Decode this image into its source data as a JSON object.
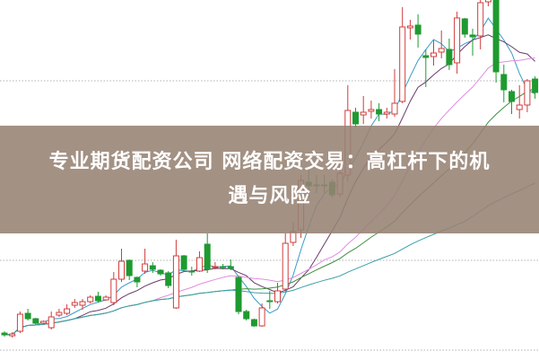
{
  "banner": {
    "line1": "专业期货配资公司 网络配资交易：高杠杆下的机",
    "line2": "遇与风险"
  },
  "chart_data": {
    "type": "candlestick",
    "title": "",
    "xlabel": "",
    "ylabel": "",
    "grid": "horizontal dotted",
    "legend": "none",
    "colors": {
      "up": "#d03c3c",
      "down": "#1e9a30",
      "ma5": "#3a9cc8",
      "ma10": "#6b3a6b",
      "ma20": "#e08ee0",
      "ma30": "#3f8f3f",
      "ma60": "#3aa0a8",
      "grid": "#b0b0b0"
    },
    "moving_averages": [
      5,
      10,
      20,
      30,
      60
    ],
    "ylim": [
      0,
      400
    ],
    "ohlc": [
      [
        29,
        27,
        31,
        25
      ],
      [
        26,
        28,
        30,
        24
      ],
      [
        31,
        50,
        53,
        29
      ],
      [
        51,
        45,
        56,
        43
      ],
      [
        45,
        40,
        46,
        38
      ],
      [
        40,
        42,
        43,
        39
      ],
      [
        35,
        47,
        53,
        33
      ],
      [
        49,
        52,
        56,
        47
      ],
      [
        51,
        56,
        61,
        49
      ],
      [
        60,
        63,
        67,
        57
      ],
      [
        60,
        64,
        67,
        55
      ],
      [
        64,
        69,
        71,
        62
      ],
      [
        70,
        65,
        75,
        63
      ],
      [
        66,
        69,
        71,
        65
      ],
      [
        63,
        89,
        97,
        60
      ],
      [
        89,
        109,
        123,
        86
      ],
      [
        110,
        93,
        111,
        88
      ],
      [
        91,
        86,
        92,
        80
      ],
      [
        98,
        106,
        123,
        95
      ],
      [
        104,
        100,
        108,
        96
      ],
      [
        99,
        95,
        100,
        93
      ],
      [
        96,
        82,
        98,
        79
      ],
      [
        57,
        115,
        133,
        56
      ],
      [
        115,
        100,
        116,
        97
      ],
      [
        98,
        97,
        103,
        93
      ],
      [
        98,
        113,
        120,
        97
      ],
      [
        128,
        100,
        140,
        96
      ],
      [
        102,
        103,
        108,
        100
      ],
      [
        103,
        102,
        106,
        100
      ],
      [
        103,
        101,
        111,
        99
      ],
      [
        91,
        53,
        93,
        50
      ],
      [
        53,
        45,
        55,
        43
      ],
      [
        44,
        37,
        45,
        36
      ],
      [
        37,
        57,
        62,
        36
      ],
      [
        65,
        64,
        76,
        56
      ],
      [
        64,
        76,
        85,
        62
      ],
      [
        78,
        129,
        140,
        75
      ],
      [
        130,
        142,
        153,
        126
      ],
      [
        144,
        199,
        205,
        135
      ],
      [
        197,
        193,
        213,
        180
      ],
      [
        194,
        193,
        205,
        185
      ],
      [
        194,
        193,
        205,
        185
      ],
      [
        197,
        183,
        200,
        180
      ],
      [
        184,
        207,
        225,
        180
      ],
      [
        205,
        277,
        305,
        198
      ],
      [
        275,
        262,
        280,
        258
      ],
      [
        272,
        275,
        293,
        262
      ],
      [
        276,
        278,
        288,
        268
      ],
      [
        278,
        273,
        285,
        265
      ],
      [
        273,
        275,
        280,
        268
      ],
      [
        273,
        285,
        323,
        270
      ],
      [
        287,
        370,
        392,
        285
      ],
      [
        369,
        371,
        378,
        356
      ],
      [
        372,
        362,
        384,
        347
      ],
      [
        338,
        336,
        345,
        303
      ],
      [
        337,
        341,
        355,
        327
      ],
      [
        342,
        346,
        366,
        335
      ],
      [
        345,
        328,
        357,
        322
      ],
      [
        330,
        380,
        387,
        318
      ],
      [
        379,
        362,
        380,
        358
      ],
      [
        361,
        359,
        368,
        338
      ],
      [
        360,
        397,
        400,
        345
      ],
      [
        398,
        401,
        404,
        393
      ],
      [
        405,
        320,
        410,
        308
      ],
      [
        317,
        300,
        328,
        286
      ],
      [
        298,
        287,
        300,
        273
      ],
      [
        278,
        283,
        305,
        268
      ],
      [
        283,
        310,
        312,
        275
      ],
      [
        312,
        297,
        315,
        290
      ]
    ]
  }
}
